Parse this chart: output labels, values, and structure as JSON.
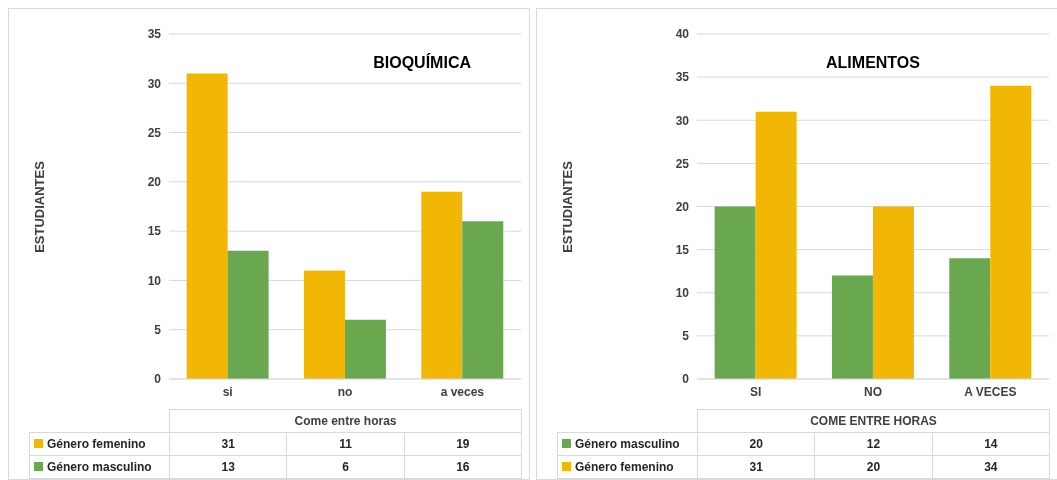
{
  "chart_data": [
    {
      "type": "bar",
      "title": "BIOQUÍMICA",
      "ylabel": "ESTUDIANTES",
      "xlabel": "Come entre horas",
      "categories": [
        "si",
        "no",
        "a veces"
      ],
      "series": [
        {
          "name": "Género femenino",
          "color": "#f2b705",
          "values": [
            31,
            11,
            19
          ]
        },
        {
          "name": "Género masculino",
          "color": "#6aa84f",
          "values": [
            13,
            6,
            16
          ]
        }
      ],
      "ylim": [
        0,
        35
      ],
      "yticks": [
        0,
        5,
        10,
        15,
        20,
        25,
        30,
        35
      ],
      "grid": "y",
      "legend": "bottom",
      "data_labels": true
    },
    {
      "type": "bar",
      "title": "ALIMENTOS",
      "ylabel": "ESTUDIANTES",
      "xlabel": "COME ENTRE HORAS",
      "categories": [
        "SI",
        "NO",
        "A VECES"
      ],
      "series": [
        {
          "name": "Género masculino",
          "color": "#6aa84f",
          "values": [
            20,
            12,
            14
          ]
        },
        {
          "name": "Género femenino",
          "color": "#f2b705",
          "values": [
            31,
            20,
            34
          ]
        }
      ],
      "ylim": [
        0,
        40
      ],
      "yticks": [
        0,
        5,
        10,
        15,
        20,
        25,
        30,
        35,
        40
      ],
      "grid": "y",
      "legend": "bottom",
      "data_labels": true
    }
  ]
}
